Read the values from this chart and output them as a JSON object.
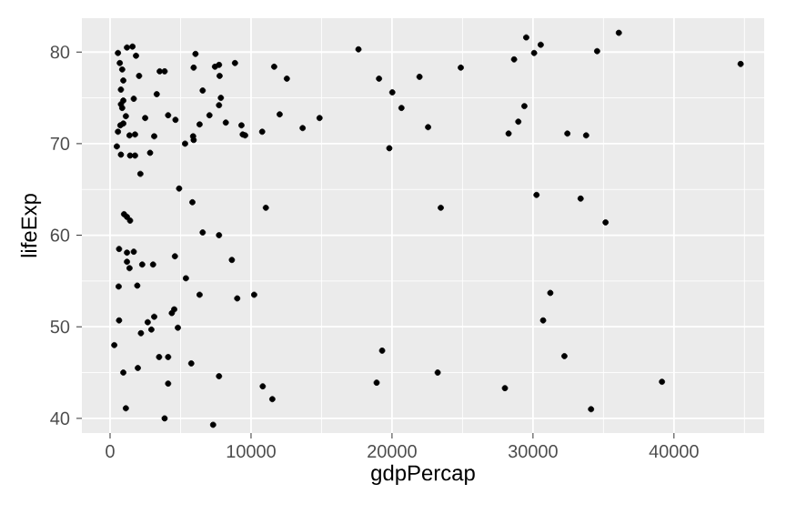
{
  "chart_data": {
    "type": "scatter",
    "xlabel": "gdpPercap",
    "ylabel": "lifeExp",
    "xlim": [
      -2000,
      46400
    ],
    "ylim": [
      38.4,
      83.7
    ],
    "xticks": [
      0,
      10000,
      20000,
      30000,
      40000
    ],
    "yticks": [
      40,
      50,
      60,
      70,
      80
    ],
    "grid": true,
    "series": [
      {
        "color": "#000000",
        "x": [
          17620,
          19080,
          20020,
          20670,
          13660,
          14860,
          19810,
          21950,
          22560,
          23460,
          24880,
          29520,
          30550,
          30080,
          28660,
          29390,
          28960,
          28270,
          30250,
          32440,
          33770,
          33380,
          35150,
          34550,
          36090,
          44730,
          31230,
          30720,
          32230,
          19300,
          18910,
          23240,
          28010,
          34120,
          39150,
          560,
          1200,
          1590,
          1840,
          690,
          860,
          940,
          2060,
          770,
          940,
          770,
          1680,
          860,
          3310,
          3520,
          3870,
          6060,
          5930,
          7440,
          7730,
          7770,
          8860,
          11640,
          12540,
          6570,
          7860,
          7730,
          7050,
          6350,
          8210,
          9320,
          9410,
          9580,
          10790,
          12030,
          4120,
          4640,
          2490,
          1120,
          730,
          940,
          560,
          1380,
          1770,
          3130,
          5320,
          5890,
          5930,
          480,
          770,
          1420,
          1770,
          2840,
          2150,
          4900,
          5840,
          11050,
          990,
          1200,
          1420,
          6570,
          7730,
          640,
          1200,
          1680,
          1200,
          1380,
          2280,
          3050,
          4600,
          8640,
          5380,
          610,
          1930,
          6350,
          9020,
          10220,
          4550,
          4380,
          3130,
          2670,
          640,
          2930,
          2190,
          4810,
          300,
          3480,
          4120,
          5760,
          940,
          1970,
          4120,
          7730,
          10830,
          11510,
          1120,
          3870,
          7310
        ],
        "values": [
          80.3,
          77.1,
          75.6,
          73.9,
          71.7,
          72.8,
          69.5,
          77.3,
          71.8,
          63.0,
          78.3,
          81.6,
          80.8,
          79.9,
          79.2,
          74.1,
          72.4,
          71.1,
          64.4,
          71.1,
          70.9,
          64.0,
          61.4,
          80.1,
          82.1,
          78.7,
          53.7,
          50.7,
          46.8,
          47.4,
          43.9,
          45.0,
          43.3,
          41.0,
          44.0,
          79.9,
          80.5,
          80.6,
          79.6,
          78.8,
          78.1,
          76.9,
          77.4,
          75.9,
          74.7,
          74.3,
          74.9,
          73.9,
          75.4,
          77.9,
          77.9,
          79.8,
          78.3,
          78.4,
          78.6,
          77.4,
          78.8,
          78.4,
          77.1,
          75.8,
          75.0,
          74.2,
          73.1,
          72.1,
          72.3,
          72.0,
          71.0,
          70.9,
          71.3,
          73.2,
          73.1,
          72.6,
          72.8,
          73.0,
          72.0,
          72.2,
          71.3,
          70.9,
          71.0,
          70.8,
          70.0,
          70.8,
          70.4,
          69.7,
          68.8,
          68.7,
          68.7,
          69.0,
          66.7,
          65.1,
          63.6,
          63.0,
          62.3,
          62.0,
          61.6,
          60.3,
          60.0,
          58.5,
          58.1,
          58.2,
          57.1,
          56.4,
          56.8,
          56.8,
          57.7,
          57.3,
          55.3,
          54.4,
          54.5,
          53.5,
          53.1,
          53.5,
          51.9,
          51.5,
          51.1,
          50.5,
          50.7,
          49.7,
          49.3,
          49.9,
          48.0,
          46.7,
          46.7,
          46.0,
          45.0,
          45.5,
          43.8,
          44.6,
          43.5,
          42.1,
          41.1,
          40.0,
          39.3
        ]
      }
    ]
  }
}
